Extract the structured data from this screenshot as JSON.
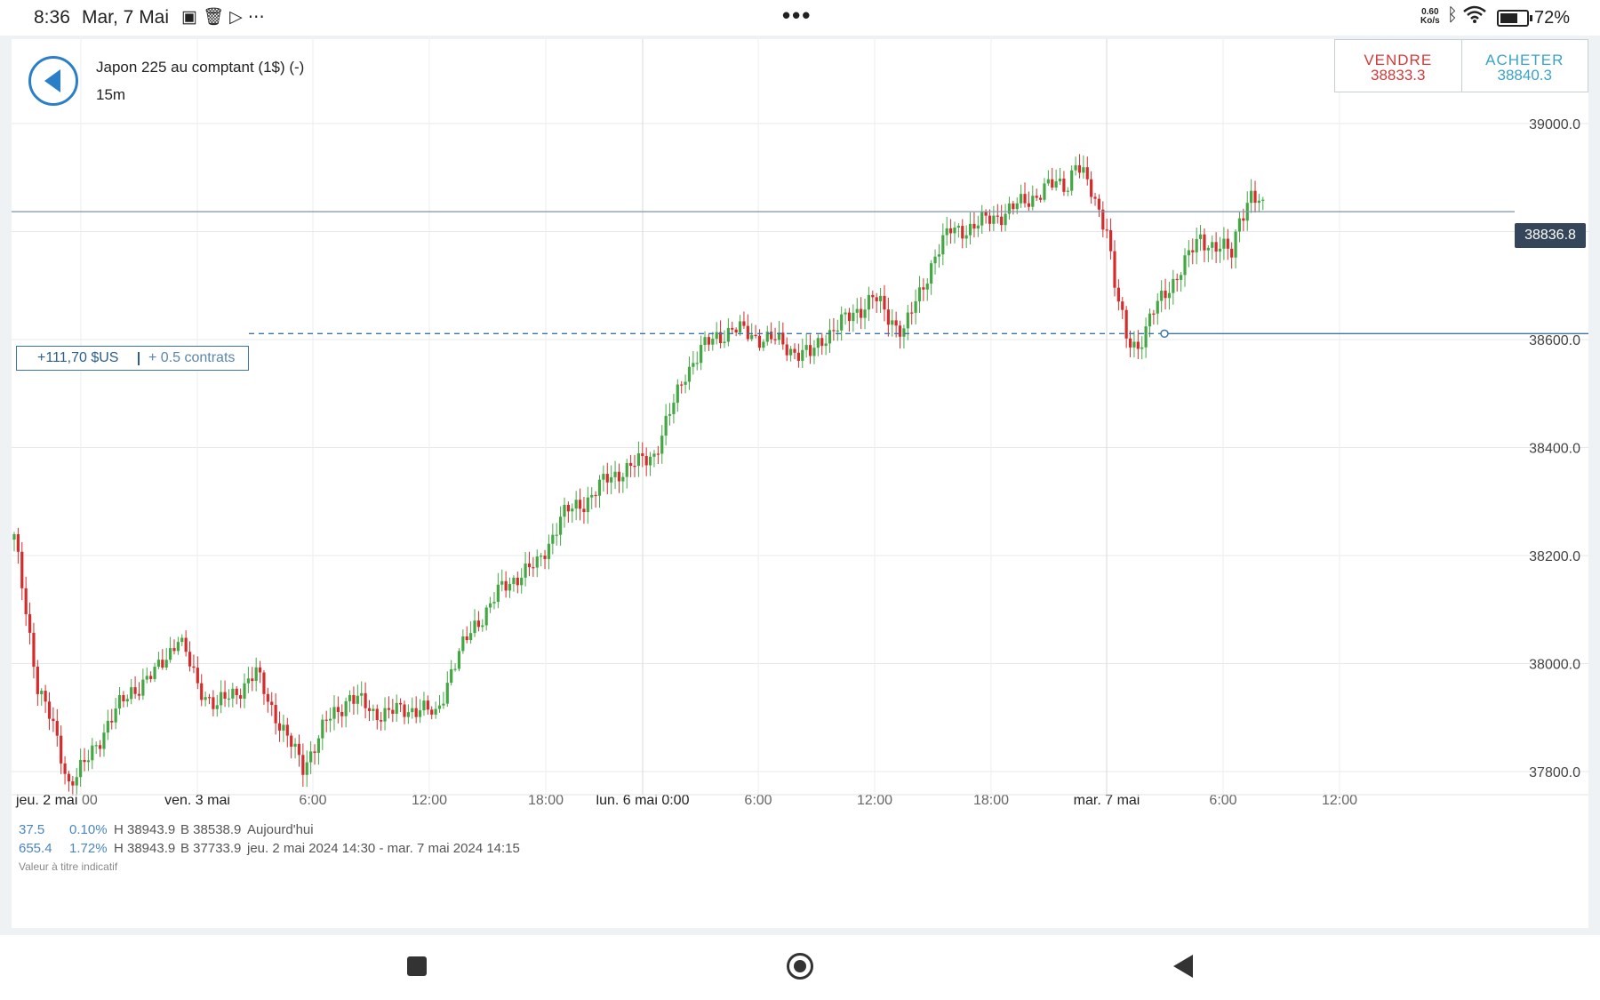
{
  "status_bar": {
    "time": "8:36",
    "date": "Mar, 7 Mai",
    "left_icons": [
      "image-off-icon",
      "trash-icon",
      "play-store-icon",
      "more-icon"
    ],
    "center_dots": "•••",
    "net_speed_value": "0.60",
    "net_speed_unit": "Ko/s",
    "right_icons": [
      "bluetooth-icon",
      "wifi-icon",
      "battery-icon"
    ],
    "battery_level": 0.72,
    "battery": "72%"
  },
  "header": {
    "instrument": "Japon 225 au comptant (1$) (-)",
    "timeframe": "15m",
    "back_icon": "back-arrow-icon"
  },
  "trade": {
    "sell_label": "VENDRE",
    "sell_price": "38833.3",
    "buy_label": "ACHETER",
    "buy_price": "38840.3"
  },
  "position": {
    "pnl": "+111,70 $US",
    "contracts": "+ 0.5 contrats"
  },
  "current_price_tag": "38836.8",
  "stats": {
    "row1": {
      "change": "37.5",
      "pct": "0.10%",
      "high": "H 38943.9",
      "low": "B 38538.9",
      "period": "Aujourd'hui"
    },
    "row2": {
      "change": "655.4",
      "pct": "1.72%",
      "high": "H 38943.9",
      "low": "B 37733.9",
      "period": "jeu. 2 mai 2024 14:30 - mar. 7 mai 2024 14:15"
    }
  },
  "note": "Valeur à titre indicatif",
  "colors": {
    "up": "#43a843",
    "down": "#d62b2b",
    "accent": "#2b7fc9",
    "price_tag_bg": "#36465a"
  },
  "chart_data": {
    "type": "candlestick",
    "title": "",
    "y_tick_labels": [
      "39000.0",
      "38800.0",
      "38600.0",
      "38400.0",
      "38200.0",
      "38000.0",
      "37800.0"
    ],
    "ylim": [
      37620,
      39200
    ],
    "x_tick_labels": [
      "jeu. 2 mai",
      "00",
      "ven. 3 mai",
      "6:00",
      "12:00",
      "18:00",
      "lun. 6 mai 0:00",
      "6:00",
      "12:00",
      "18:00",
      "mar. 7 mai",
      "6:00",
      "12:00"
    ],
    "current_price": 38836.8,
    "position_entry_price": 38611,
    "grid": true,
    "close_anchors": [
      [
        0,
        38230
      ],
      [
        3,
        38100
      ],
      [
        6,
        37960
      ],
      [
        10,
        37880
      ],
      [
        14,
        37780
      ],
      [
        18,
        37810
      ],
      [
        24,
        37890
      ],
      [
        30,
        37950
      ],
      [
        36,
        37980
      ],
      [
        42,
        38050
      ],
      [
        47,
        37960
      ],
      [
        52,
        37920
      ],
      [
        57,
        37950
      ],
      [
        62,
        37980
      ],
      [
        66,
        37920
      ],
      [
        70,
        37860
      ],
      [
        74,
        37810
      ],
      [
        80,
        37890
      ],
      [
        86,
        37940
      ],
      [
        92,
        37910
      ],
      [
        98,
        37910
      ],
      [
        104,
        37920
      ],
      [
        108,
        37900
      ],
      [
        112,
        37990
      ],
      [
        118,
        38070
      ],
      [
        124,
        38130
      ],
      [
        130,
        38170
      ],
      [
        134,
        38180
      ],
      [
        140,
        38270
      ],
      [
        146,
        38300
      ],
      [
        152,
        38340
      ],
      [
        156,
        38360
      ],
      [
        160,
        38370
      ],
      [
        164,
        38390
      ],
      [
        168,
        38460
      ],
      [
        172,
        38540
      ],
      [
        176,
        38580
      ],
      [
        180,
        38605
      ],
      [
        184,
        38620
      ],
      [
        188,
        38610
      ],
      [
        194,
        38600
      ],
      [
        200,
        38580
      ],
      [
        204,
        38570
      ],
      [
        208,
        38610
      ],
      [
        214,
        38640
      ],
      [
        220,
        38680
      ],
      [
        224,
        38640
      ],
      [
        228,
        38620
      ],
      [
        232,
        38680
      ],
      [
        236,
        38760
      ],
      [
        240,
        38800
      ],
      [
        246,
        38810
      ],
      [
        252,
        38830
      ],
      [
        258,
        38850
      ],
      [
        264,
        38880
      ],
      [
        270,
        38890
      ],
      [
        272,
        38930
      ],
      [
        276,
        38870
      ],
      [
        280,
        38810
      ],
      [
        282,
        38700
      ],
      [
        285,
        38600
      ],
      [
        288,
        38590
      ],
      [
        292,
        38650
      ],
      [
        296,
        38700
      ],
      [
        300,
        38740
      ],
      [
        304,
        38790
      ],
      [
        308,
        38770
      ],
      [
        312,
        38760
      ],
      [
        314,
        38830
      ],
      [
        317,
        38865
      ],
      [
        320,
        38840
      ]
    ]
  }
}
